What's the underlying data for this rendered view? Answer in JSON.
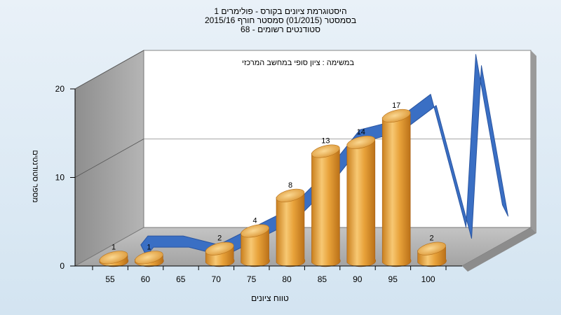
{
  "chart_data": {
    "type": "bar",
    "title_lines": [
      "היסטוגרמת ציונים בקורס - פולימרים 1",
      "בסמסטר  (01/2015)  סמסטר חורף 2015/16",
      "סטודנטים רשומים - 68"
    ],
    "subtitle": "במשימה : ציון סופי במחשב המרכזי",
    "xlabel": "טווח ציונים",
    "ylabel": "מספר סטודנטים",
    "categories": [
      "55",
      "60",
      "65",
      "70",
      "75",
      "80",
      "85",
      "90",
      "95",
      "100"
    ],
    "values": [
      1,
      1,
      0,
      2,
      4,
      8,
      13,
      14,
      17,
      2
    ],
    "data_labels": [
      "1",
      "1",
      "",
      "2",
      "4",
      "8",
      "13",
      "14",
      "17",
      "2"
    ],
    "y_ticks": [
      "0",
      "10",
      "20"
    ],
    "ylim": [
      0,
      20
    ],
    "curve_color": "#3a6fc4",
    "bar_color": "#e8a23a",
    "wall_color": "#a9a9a9",
    "back_wall_color": "#ffffff"
  }
}
